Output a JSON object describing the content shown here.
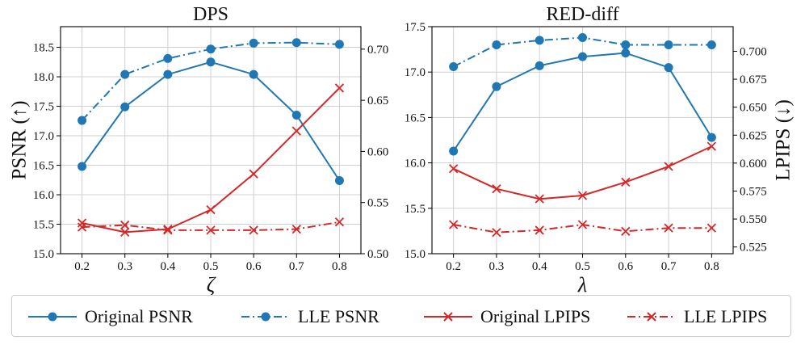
{
  "colors": {
    "psnr": "#1f77b4",
    "lpips": "#d62728",
    "grid": "#d0d0d0"
  },
  "legend": [
    {
      "label": "Original PSNR",
      "color": "#1f77b4",
      "style": "solid",
      "marker": "circle"
    },
    {
      "label": "LLE PSNR",
      "color": "#1f77b4",
      "style": "dashdot",
      "marker": "circle"
    },
    {
      "label": "Original LPIPS",
      "color": "#d62728",
      "style": "solid",
      "marker": "x"
    },
    {
      "label": "LLE LPIPS",
      "color": "#d62728",
      "style": "dashdot",
      "marker": "x"
    }
  ],
  "chart_data": [
    {
      "type": "line",
      "title": "DPS",
      "xlabel": "ζ",
      "ylabel": "PSNR (↑)",
      "y2label": "",
      "x": [
        0.2,
        0.3,
        0.4,
        0.5,
        0.6,
        0.7,
        0.8
      ],
      "x_ticks": [
        "0.2",
        "0.3",
        "0.4",
        "0.5",
        "0.6",
        "0.7",
        "0.8"
      ],
      "ylim": [
        15.0,
        18.85
      ],
      "y_ticks": [
        "15.0",
        "15.5",
        "16.0",
        "16.5",
        "17.0",
        "17.5",
        "18.0",
        "18.5"
      ],
      "y2lim": [
        0.5,
        0.722
      ],
      "y2_ticks": [
        "0.50",
        "0.55",
        "0.60",
        "0.65",
        "0.70"
      ],
      "grid": true,
      "series": [
        {
          "name": "Original PSNR",
          "axis": "left",
          "values": [
            16.48,
            17.49,
            18.04,
            18.25,
            18.04,
            17.35,
            16.24
          ]
        },
        {
          "name": "LLE PSNR",
          "axis": "left",
          "values": [
            17.26,
            18.04,
            18.31,
            18.47,
            18.57,
            18.58,
            18.55
          ]
        },
        {
          "name": "Original LPIPS",
          "axis": "right",
          "values": [
            0.53,
            0.521,
            0.524,
            0.543,
            0.578,
            0.62,
            0.662
          ]
        },
        {
          "name": "LLE LPIPS",
          "axis": "right",
          "values": [
            0.526,
            0.528,
            0.523,
            0.523,
            0.523,
            0.524,
            0.531
          ]
        }
      ]
    },
    {
      "type": "line",
      "title": "RED-diff",
      "xlabel": "λ",
      "ylabel": "",
      "y2label": "LPIPS (↓)",
      "x": [
        0.2,
        0.3,
        0.4,
        0.5,
        0.6,
        0.7,
        0.8
      ],
      "x_ticks": [
        "0.2",
        "0.3",
        "0.4",
        "0.5",
        "0.6",
        "0.7",
        "0.8"
      ],
      "ylim": [
        15.0,
        17.5
      ],
      "y_ticks": [
        "15.0",
        "15.5",
        "16.0",
        "16.5",
        "17.0",
        "17.5"
      ],
      "y2lim": [
        0.519,
        0.722
      ],
      "y2_ticks": [
        "0.525",
        "0.550",
        "0.575",
        "0.600",
        "0.625",
        "0.650",
        "0.675",
        "0.700"
      ],
      "grid": true,
      "series": [
        {
          "name": "Original PSNR",
          "axis": "left",
          "values": [
            16.13,
            16.84,
            17.07,
            17.17,
            17.21,
            17.05,
            16.28
          ]
        },
        {
          "name": "LLE PSNR",
          "axis": "left",
          "values": [
            17.06,
            17.3,
            17.35,
            17.38,
            17.3,
            17.3,
            17.3
          ]
        },
        {
          "name": "Original LPIPS",
          "axis": "right",
          "values": [
            0.595,
            0.577,
            0.568,
            0.571,
            0.583,
            0.597,
            0.615
          ]
        },
        {
          "name": "LLE LPIPS",
          "axis": "right",
          "values": [
            0.545,
            0.538,
            0.54,
            0.545,
            0.539,
            0.542,
            0.542
          ]
        }
      ]
    }
  ]
}
